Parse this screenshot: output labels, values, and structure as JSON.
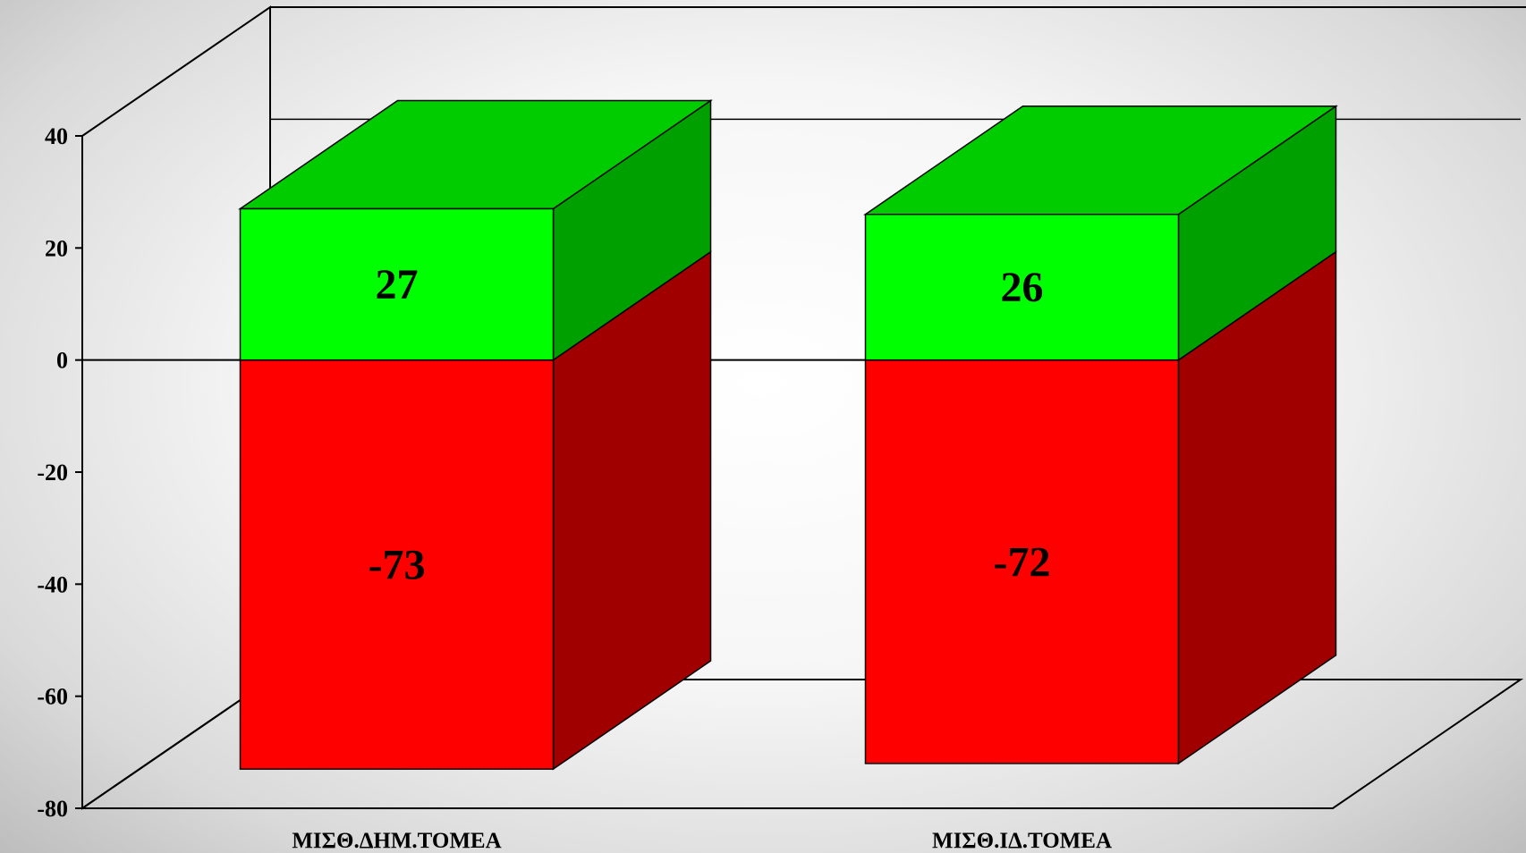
{
  "chart_data": {
    "type": "bar",
    "stacked": true,
    "three_d": true,
    "categories": [
      "ΜΙΣΘ.ΔΗΜ.ΤΟΜΕΑ",
      "ΜΙΣΘ.ΙΔ.ΤΟΜΕΑ"
    ],
    "series": [
      {
        "values": [
          27,
          26
        ],
        "color": "#00ff00",
        "side_color": "#00a000",
        "top_color": "#00cc00"
      },
      {
        "values": [
          -73,
          -72
        ],
        "color": "#ff0000",
        "side_color": "#a00000",
        "top_color": "#cc0000"
      }
    ],
    "data_labels": [
      [
        "27",
        "26"
      ],
      [
        "-73",
        "-72"
      ]
    ],
    "ylim": [
      -80,
      40
    ],
    "yticks": [
      40,
      20,
      0,
      -20,
      -40,
      -60,
      -80
    ],
    "ytick_labels": [
      "40",
      "20",
      "0",
      "-20",
      "-40",
      "-60",
      "-80"
    ],
    "grid": false,
    "title": "",
    "xlabel": "",
    "ylabel": ""
  }
}
